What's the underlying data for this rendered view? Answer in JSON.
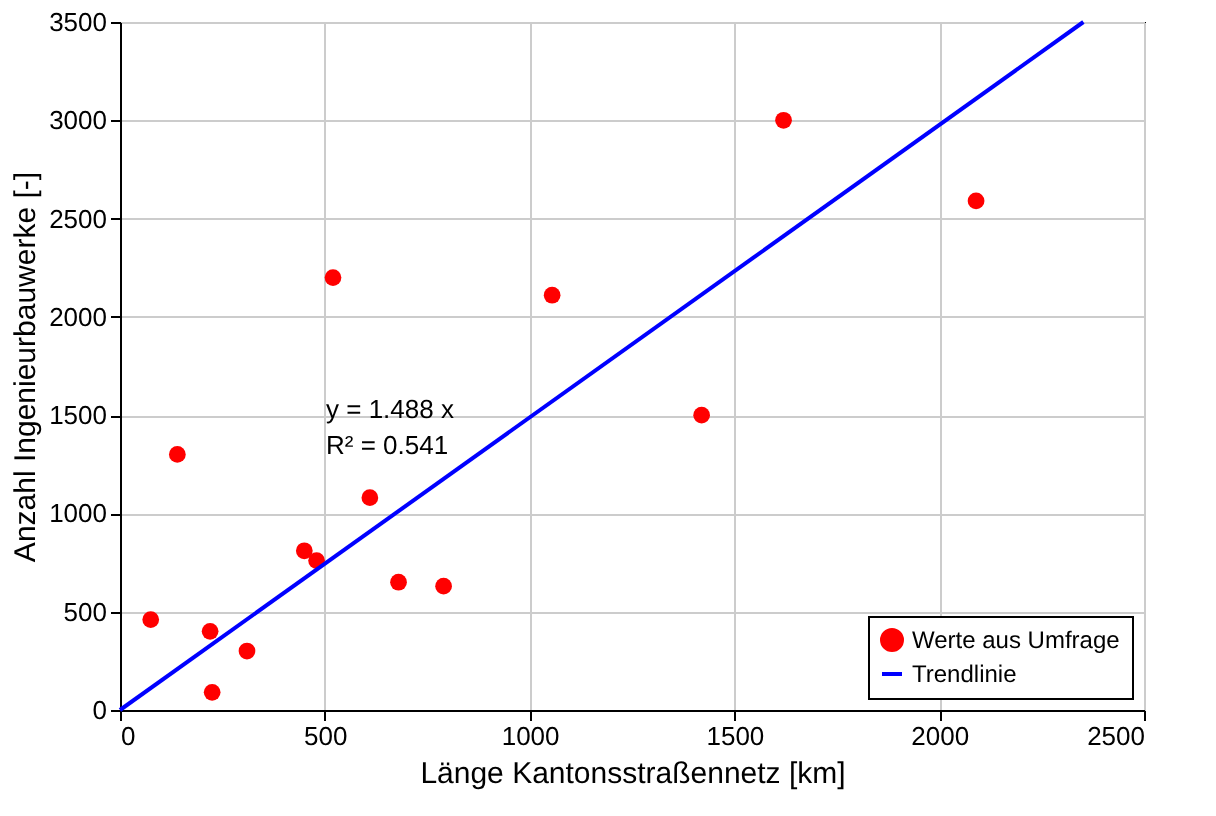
{
  "chart_data": {
    "type": "scatter",
    "xlabel": "Länge Kantonsstraßennetz [km]",
    "ylabel": "Anzahl Ingenieurbauwerke [-]",
    "xlim": [
      0,
      2500
    ],
    "xticks": [
      0,
      500,
      1000,
      1500,
      2000,
      2500
    ],
    "ylim": [
      0,
      3500
    ],
    "yticks": [
      0,
      500,
      1000,
      1500,
      2000,
      2500,
      3000,
      3500
    ],
    "grid": true,
    "legend": "bottom right",
    "annotations": [
      "y = 1.488 x",
      "R² = 0.541"
    ],
    "series": [
      {
        "name": "Werte aus Umfrage",
        "marker": "circle",
        "color": "#ff0000",
        "x": [
          75,
          140,
          220,
          225,
          310,
          450,
          480,
          520,
          610,
          680,
          790,
          1055,
          1420,
          1620,
          2090
        ],
        "values": [
          460,
          1300,
          400,
          90,
          300,
          810,
          760,
          2200,
          1080,
          650,
          630,
          2110,
          1500,
          3000,
          2590
        ]
      },
      {
        "name": "Trendlinie",
        "type": "line",
        "color": "#0000ff",
        "line_style": "solid",
        "x": [
          0,
          2352
        ],
        "values": [
          0,
          3500
        ]
      }
    ]
  }
}
